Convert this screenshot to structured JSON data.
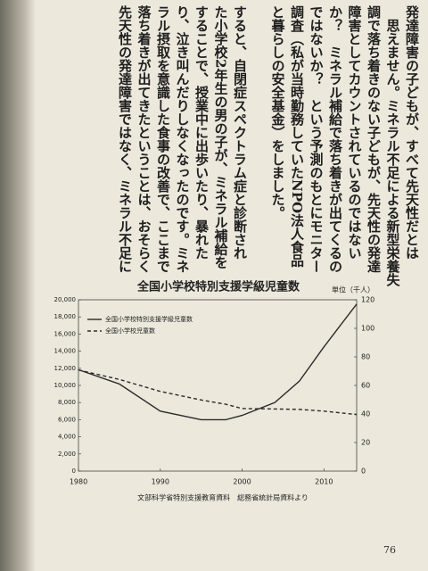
{
  "text": {
    "columns": [
      "発達障害の子どもが、すべて先天性だとは",
      "思えません。ミネラル不足による新型栄養失",
      "調で落ち着きのない子どもが、先天性の発達",
      "障害としてカウントされているのではない",
      "か？　ミネラル補給で落ち着きが出てくるの",
      "ではないか？　という予測のもとにモニター",
      "調査（私が当時勤務していたNPO法人食品",
      "と暮らしの安全基金）をしました。",
      "すると、自閉症スペクトラム症と診断され",
      "た小学校2年生の男の子が、ミネラル補給を",
      "することで、授業中に出歩いたり、暴れた",
      "り、泣き叫んだりしなくなったのです。ミネ",
      "ラル摂取を意識した食事の改善で、ここまで",
      "落ち着きが出てきたということは、おそらく",
      "先天性の発達障害ではなく、ミネラル不足に"
    ]
  },
  "chart_data": {
    "type": "line",
    "title": "全国小学校特別支援学級児童数",
    "unit_label": "単位（千人）",
    "source": "文部科学省特別支援教育資料　総務省統計局資料より",
    "x": [
      1980,
      1985,
      1990,
      1995,
      1998,
      2000,
      2004,
      2007,
      2010,
      2014
    ],
    "series": [
      {
        "name": "全国小学校特別支援学級児童数",
        "color": "#2a2a2a",
        "line_style": "solid",
        "axis": "y2",
        "values": [
          71,
          61,
          42,
          36,
          36,
          39,
          48,
          63,
          87,
          117
        ]
      },
      {
        "name": "全国小学校児童数",
        "color": "#2a2a2a",
        "line_style": "dashed",
        "values": [
          11800,
          10700,
          9300,
          8300,
          7800,
          7300,
          7250,
          7200,
          7000,
          6600
        ]
      }
    ],
    "xlim": [
      1980,
      2014
    ],
    "xticks": [
      1980,
      1990,
      2000,
      2010
    ],
    "ylim": [
      0,
      20000
    ],
    "yticks": [
      0,
      {
        "value": 2000,
        "label": "2,000"
      },
      {
        "value": 4000,
        "label": "4,000"
      },
      {
        "value": 6000,
        "label": "6,000"
      },
      {
        "value": 8000,
        "label": "8,000"
      },
      {
        "value": 10000,
        "label": "10,000"
      },
      {
        "value": 12000,
        "label": "12,000"
      },
      {
        "value": 14000,
        "label": "14,000"
      },
      {
        "value": 16000,
        "label": "16,000"
      },
      {
        "value": 18000,
        "label": "18,000"
      },
      {
        "value": 20000,
        "label": "20,000"
      }
    ],
    "y2lim": [
      0,
      120
    ],
    "y2ticks": [
      0,
      20,
      40,
      60,
      80,
      100,
      120
    ],
    "legend": "upper left"
  },
  "page_number": "76"
}
